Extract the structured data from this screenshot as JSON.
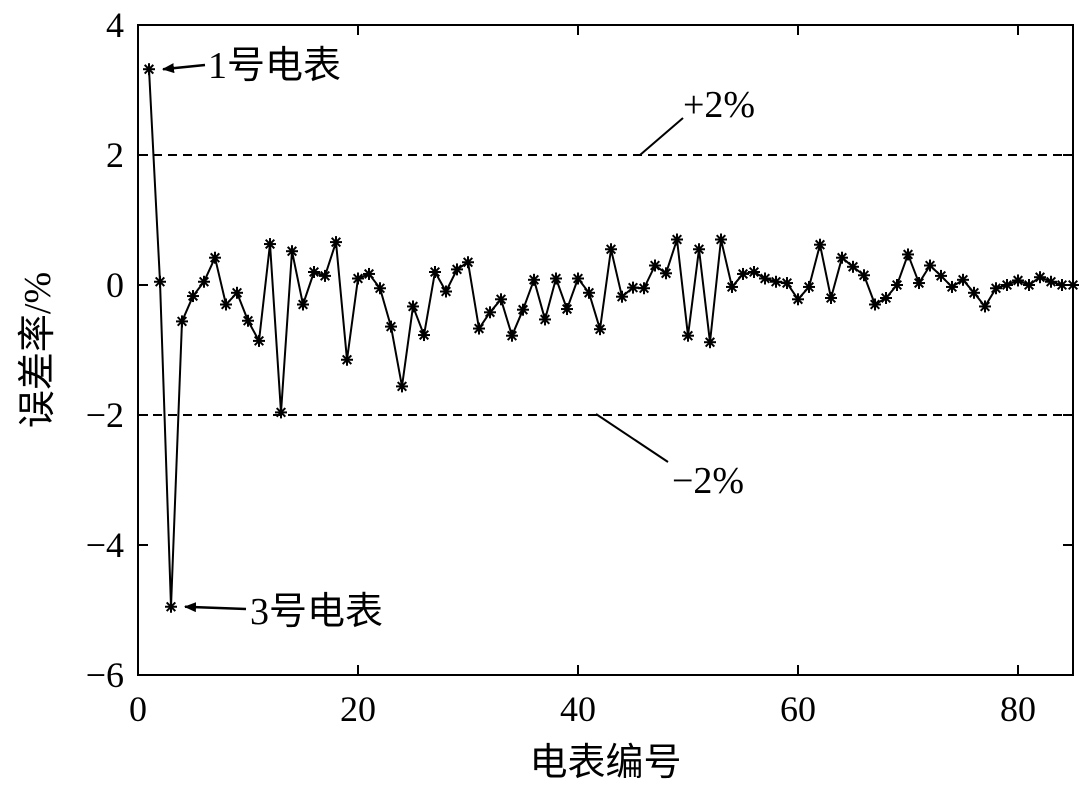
{
  "chart_data": {
    "type": "line",
    "xlabel": "电表编号",
    "ylabel": "误差率/%",
    "xlim": [
      0,
      85
    ],
    "ylim": [
      -6,
      4
    ],
    "xticks": [
      0,
      20,
      40,
      60,
      80
    ],
    "yticks": [
      -6,
      -4,
      -2,
      0,
      2,
      4
    ],
    "tick_labels": {
      "x": [
        "0",
        "20",
        "40",
        "60",
        "80"
      ],
      "y": [
        "−6",
        "−4",
        "−2",
        "0",
        "2",
        "4"
      ]
    },
    "grid": false,
    "marker": "asterisk",
    "line_color": "#000000",
    "series": [
      {
        "x": [
          1,
          2,
          3,
          4,
          5,
          6,
          7,
          8,
          9,
          10,
          11,
          12,
          13,
          14,
          15,
          16,
          17,
          18,
          19,
          20,
          21,
          22,
          23,
          24,
          25,
          26,
          27,
          28,
          29,
          30,
          31,
          32,
          33,
          34,
          35,
          36,
          37,
          38,
          39,
          40,
          41,
          42,
          43,
          44,
          45,
          46,
          47,
          48,
          49,
          50,
          51,
          52,
          53,
          54,
          55,
          56,
          57,
          58,
          59,
          60,
          61,
          62,
          63,
          64,
          65,
          66,
          67,
          68,
          69,
          70,
          71,
          72,
          73,
          74,
          75,
          76,
          77,
          78,
          79,
          80,
          81,
          82,
          83,
          84,
          85
        ],
        "values": [
          3.32,
          0.05,
          -4.95,
          -0.56,
          -0.17,
          0.05,
          0.42,
          -0.3,
          -0.12,
          -0.55,
          -0.86,
          0.63,
          -1.96,
          0.52,
          -0.3,
          0.2,
          0.14,
          0.66,
          -1.15,
          0.1,
          0.17,
          -0.05,
          -0.64,
          -1.56,
          -0.33,
          -0.77,
          0.2,
          -0.1,
          0.24,
          0.35,
          -0.67,
          -0.42,
          -0.22,
          -0.78,
          -0.38,
          0.08,
          -0.53,
          0.1,
          -0.37,
          0.1,
          -0.12,
          -0.68,
          0.55,
          -0.18,
          -0.04,
          -0.05,
          0.3,
          0.18,
          0.7,
          -0.78,
          0.55,
          -0.88,
          0.7,
          -0.03,
          0.17,
          0.2,
          0.1,
          0.05,
          0.03,
          -0.22,
          -0.03,
          0.62,
          -0.2,
          0.42,
          0.28,
          0.15,
          -0.3,
          -0.2,
          0.0,
          0.47,
          0.03,
          0.3,
          0.14,
          -0.03,
          0.08,
          -0.12,
          -0.33,
          -0.05,
          0.0,
          0.07,
          0.0,
          0.12,
          0.05,
          0.0,
          0.0
        ]
      }
    ],
    "reference_lines": [
      {
        "y": 2,
        "style": "dashed",
        "label": "+2%"
      },
      {
        "y": -2,
        "style": "dashed",
        "label": "−2%"
      }
    ],
    "annotations": [
      {
        "text": "1号电表",
        "point_x": 1,
        "point_y": 3.32
      },
      {
        "text": "3号电表",
        "point_x": 3,
        "point_y": -4.95
      }
    ]
  }
}
